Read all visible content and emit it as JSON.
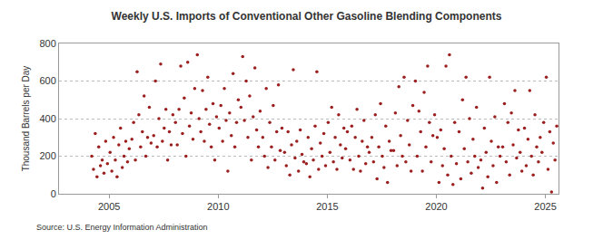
{
  "chart_data": {
    "type": "scatter",
    "title": "Weekly U.S. Imports of Conventional Other Gasoline Blending Components",
    "y_label": "Thousand Barrels per Day",
    "source": "Source: U.S. Energy Information Administration",
    "color": "#9c1f1f",
    "marker": "circle",
    "grid": true,
    "xlim": [
      2002.7,
      2025.6
    ],
    "xticks": [
      2005,
      2010,
      2015,
      2020,
      2025
    ],
    "ylim": [
      0,
      800
    ],
    "yticks": [
      0,
      200,
      400,
      600,
      800
    ],
    "x": [
      2004.2,
      2004.28,
      2004.36,
      2004.44,
      2004.52,
      2004.6,
      2004.68,
      2004.76,
      2004.84,
      2004.92,
      2005.04,
      2005.12,
      2005.2,
      2005.28,
      2005.36,
      2005.44,
      2005.52,
      2005.6,
      2005.68,
      2005.76,
      2005.84,
      2005.92,
      2006.04,
      2006.12,
      2006.2,
      2006.28,
      2006.36,
      2006.44,
      2006.52,
      2006.6,
      2006.68,
      2006.76,
      2006.84,
      2006.92,
      2007.04,
      2007.12,
      2007.2,
      2007.28,
      2007.36,
      2007.44,
      2007.52,
      2007.6,
      2007.68,
      2007.76,
      2007.84,
      2007.92,
      2008.04,
      2008.12,
      2008.2,
      2008.28,
      2008.36,
      2008.44,
      2008.52,
      2008.6,
      2008.68,
      2008.76,
      2008.84,
      2008.92,
      2009.04,
      2009.12,
      2009.2,
      2009.28,
      2009.36,
      2009.44,
      2009.52,
      2009.6,
      2009.68,
      2009.76,
      2009.84,
      2009.92,
      2010.04,
      2010.12,
      2010.2,
      2010.28,
      2010.36,
      2010.44,
      2010.52,
      2010.6,
      2010.68,
      2010.76,
      2010.84,
      2010.92,
      2011.04,
      2011.12,
      2011.2,
      2011.28,
      2011.36,
      2011.44,
      2011.52,
      2011.6,
      2011.68,
      2011.76,
      2011.84,
      2011.92,
      2012.04,
      2012.12,
      2012.2,
      2012.28,
      2012.36,
      2012.44,
      2012.52,
      2012.6,
      2012.68,
      2012.76,
      2012.84,
      2012.92,
      2013.04,
      2013.12,
      2013.2,
      2013.28,
      2013.36,
      2013.44,
      2013.52,
      2013.6,
      2013.68,
      2013.76,
      2013.84,
      2013.92,
      2014.04,
      2014.12,
      2014.2,
      2014.28,
      2014.36,
      2014.44,
      2014.52,
      2014.6,
      2014.68,
      2014.76,
      2014.84,
      2014.92,
      2015.04,
      2015.12,
      2015.2,
      2015.28,
      2015.36,
      2015.44,
      2015.52,
      2015.6,
      2015.68,
      2015.76,
      2015.84,
      2015.92,
      2016.04,
      2016.12,
      2016.2,
      2016.28,
      2016.36,
      2016.44,
      2016.52,
      2016.6,
      2016.68,
      2016.76,
      2016.84,
      2016.92,
      2017.04,
      2017.12,
      2017.2,
      2017.28,
      2017.36,
      2017.44,
      2017.52,
      2017.6,
      2017.68,
      2017.76,
      2017.84,
      2017.92,
      2018.04,
      2018.12,
      2018.2,
      2018.28,
      2018.36,
      2018.44,
      2018.52,
      2018.6,
      2018.68,
      2018.76,
      2018.84,
      2018.92,
      2019.04,
      2019.12,
      2019.2,
      2019.28,
      2019.36,
      2019.44,
      2019.52,
      2019.6,
      2019.68,
      2019.76,
      2019.84,
      2019.92,
      2020.04,
      2020.12,
      2020.2,
      2020.28,
      2020.36,
      2020.44,
      2020.52,
      2020.6,
      2020.68,
      2020.76,
      2020.84,
      2020.92,
      2021.04,
      2021.12,
      2021.2,
      2021.28,
      2021.36,
      2021.44,
      2021.52,
      2021.6,
      2021.68,
      2021.76,
      2021.84,
      2021.92,
      2022.04,
      2022.12,
      2022.2,
      2022.28,
      2022.36,
      2022.44,
      2022.52,
      2022.6,
      2022.68,
      2022.76,
      2022.84,
      2022.92,
      2023.04,
      2023.12,
      2023.2,
      2023.28,
      2023.36,
      2023.44,
      2023.52,
      2023.6,
      2023.68,
      2023.76,
      2023.84,
      2023.92,
      2024.04,
      2024.12,
      2024.2,
      2024.28,
      2024.36,
      2024.44,
      2024.52,
      2024.6,
      2024.68,
      2024.76,
      2024.84,
      2024.92,
      2025.04,
      2025.12,
      2025.2,
      2025.28,
      2025.36,
      2025.44,
      2025.52
    ],
    "values": [
      200,
      130,
      320,
      90,
      250,
      150,
      180,
      110,
      280,
      160,
      220,
      120,
      300,
      180,
      90,
      260,
      350,
      140,
      200,
      280,
      170,
      240,
      290,
      380,
      180,
      650,
      420,
      250,
      330,
      520,
      200,
      300,
      460,
      270,
      310,
      600,
      250,
      400,
      690,
      280,
      350,
      450,
      180,
      330,
      260,
      420,
      380,
      260,
      450,
      680,
      320,
      510,
      200,
      700,
      360,
      430,
      290,
      560,
      740,
      400,
      330,
      550,
      280,
      450,
      620,
      370,
      250,
      480,
      180,
      410,
      350,
      470,
      280,
      560,
      390,
      120,
      430,
      310,
      640,
      250,
      380,
      500,
      460,
      730,
      390,
      600,
      300,
      520,
      180,
      410,
      670,
      340,
      250,
      440,
      300,
      200,
      560,
      140,
      380,
      250,
      470,
      180,
      330,
      580,
      230,
      350,
      220,
      150,
      330,
      100,
      260,
      660,
      190,
      280,
      120,
      340,
      210,
      170,
      160,
      300,
      90,
      240,
      180,
      360,
      650,
      130,
      270,
      200,
      320,
      150,
      380,
      220,
      460,
      170,
      300,
      130,
      420,
      260,
      190,
      350,
      240,
      330,
      180,
      360,
      130,
      300,
      450,
      200,
      120,
      280,
      390,
      160,
      250,
      220,
      300,
      170,
      420,
      80,
      250,
      480,
      200,
      140,
      360,
      60,
      280,
      230,
      230,
      430,
      150,
      570,
      310,
      200,
      620,
      170,
      390,
      260,
      120,
      470,
      600,
      200,
      440,
      330,
      120,
      540,
      250,
      680,
      380,
      170,
      310,
      420,
      300,
      60,
      340,
      150,
      240,
      680,
      100,
      740,
      200,
      50,
      380,
      160,
      330,
      80,
      500,
      240,
      620,
      170,
      400,
      110,
      290,
      200,
      460,
      140,
      180,
      30,
      350,
      220,
      90,
      620,
      280,
      150,
      410,
      60,
      250,
      200,
      250,
      480,
      170,
      380,
      100,
      430,
      260,
      550,
      190,
      340,
      220,
      120,
      350,
      150,
      290,
      550,
      200,
      100,
      420,
      250,
      170,
      300,
      220,
      380,
      620,
      130,
      330,
      10,
      270,
      180,
      360
    ]
  }
}
